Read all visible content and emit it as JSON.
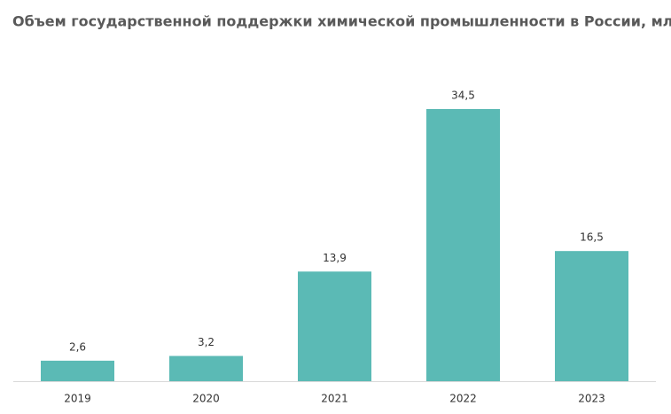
{
  "chart_data": {
    "type": "bar",
    "title": "Объем государственной поддержки химической промышленности в России, млрд руб.",
    "categories": [
      "2019",
      "2020",
      "2021",
      "2022",
      "2023"
    ],
    "values": [
      2.6,
      3.2,
      13.9,
      34.5,
      16.5
    ],
    "value_labels": [
      "2,6",
      "3,2",
      "13,9",
      "34,5",
      "16,5"
    ],
    "color": "#5bbab5"
  }
}
